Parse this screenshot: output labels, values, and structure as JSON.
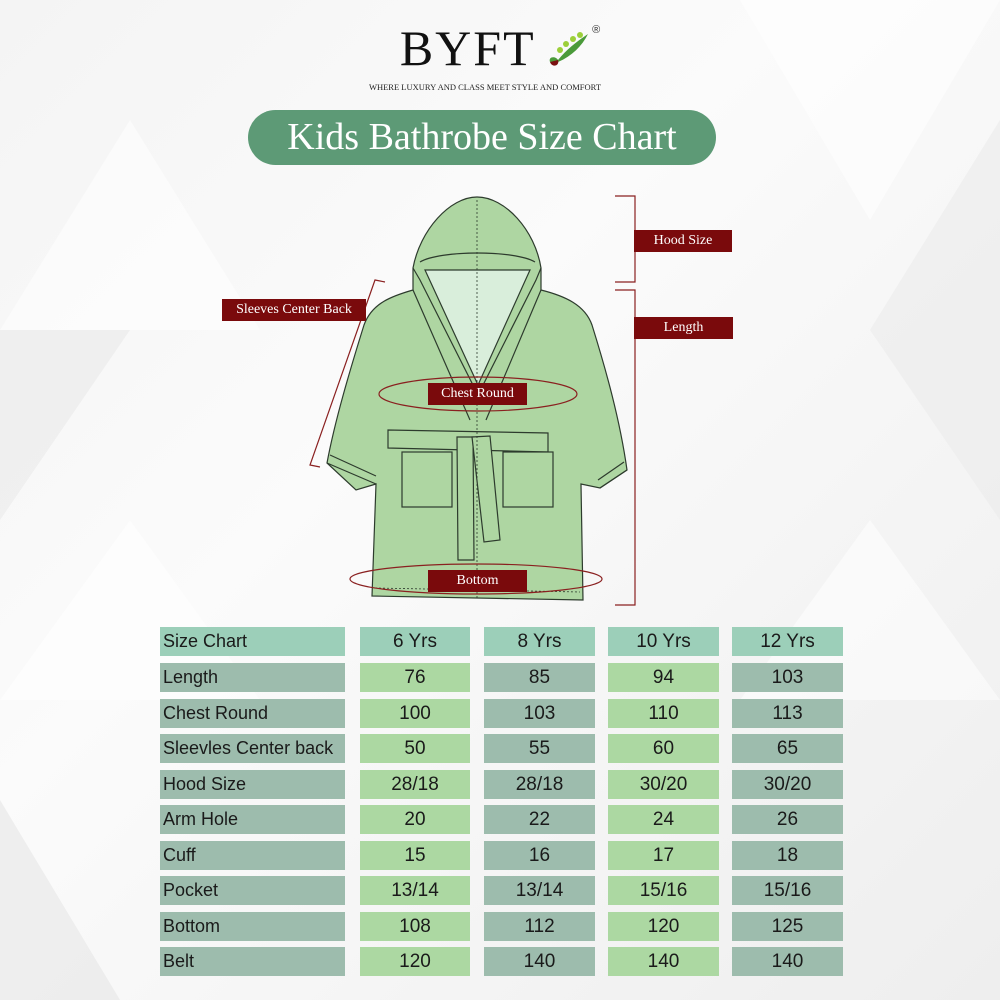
{
  "brand": {
    "name": "BYFT",
    "registered": "®",
    "tagline": "WHERE LUXURY AND CLASS MEET STYLE AND COMFORT"
  },
  "title": "Kids Bathrobe Size Chart",
  "diagram_labels": {
    "hood": "Hood Size",
    "length": "Length",
    "sleeves": "Sleeves Center Back",
    "chest": "Chest Round",
    "bottom": "Bottom"
  },
  "colors": {
    "title_bg": "#5d9a76",
    "label_bg": "#7a0a0c",
    "robe": "#aed6a2",
    "header_cell": "#9ccfb9",
    "gray_cell": "#9dbcad",
    "green_cell": "#acd8a2"
  },
  "chart_data": {
    "type": "table",
    "columns": [
      "Size Chart",
      "6 Yrs",
      "8 Yrs",
      "10 Yrs",
      "12 Yrs"
    ],
    "rows": [
      [
        "Length",
        "76",
        "85",
        "94",
        "103"
      ],
      [
        "Chest Round",
        "100",
        "103",
        "110",
        "113"
      ],
      [
        "Sleevles Center back",
        "50",
        "55",
        "60",
        "65"
      ],
      [
        "Hood Size",
        "28/18",
        "28/18",
        "30/20",
        "30/20"
      ],
      [
        "Arm Hole",
        "20",
        "22",
        "24",
        "26"
      ],
      [
        "Cuff",
        "15",
        "16",
        "17",
        "18"
      ],
      [
        "Pocket",
        "13/14",
        "13/14",
        "15/16",
        "15/16"
      ],
      [
        "Bottom",
        "108",
        "112",
        "120",
        "125"
      ],
      [
        "Belt",
        "120",
        "140",
        "140",
        "140"
      ]
    ]
  }
}
